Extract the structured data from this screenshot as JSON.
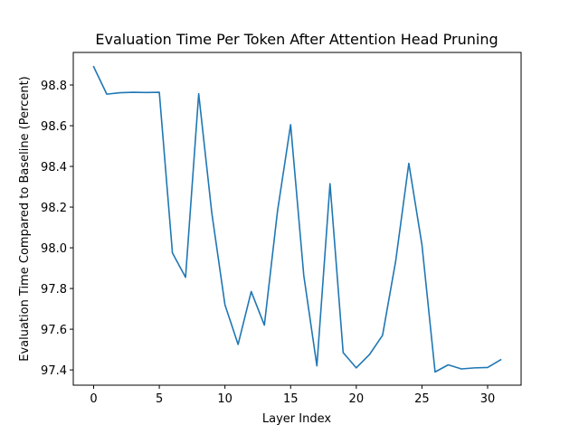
{
  "chart_data": {
    "type": "line",
    "title": "Evaluation Time Per Token After Attention Head Pruning",
    "xlabel": "Layer Index",
    "ylabel": "Evaluation Time Compared to Baseline (Percent)",
    "xlim": [
      -1.55,
      32.55
    ],
    "ylim": [
      97.325,
      98.96
    ],
    "xticks": [
      0,
      5,
      10,
      15,
      20,
      25,
      30
    ],
    "xtick_labels": [
      "0",
      "5",
      "10",
      "15",
      "20",
      "25",
      "30"
    ],
    "yticks": [
      97.4,
      97.6,
      97.8,
      98.0,
      98.2,
      98.4,
      98.6,
      98.8
    ],
    "ytick_labels": [
      "97.4",
      "97.6",
      "97.8",
      "98.0",
      "98.2",
      "98.4",
      "98.6",
      "98.8"
    ],
    "grid": false,
    "line_color": "#1f77b4",
    "series": [
      {
        "x": [
          0,
          1,
          2,
          3,
          4,
          5,
          6,
          7,
          8,
          9,
          10,
          11,
          12,
          13,
          14,
          15,
          16,
          17,
          18,
          19,
          20,
          21,
          22,
          23,
          24,
          25,
          26,
          27,
          28,
          29,
          30,
          31
        ],
        "values": [
          98.89,
          98.755,
          98.762,
          98.764,
          98.763,
          98.764,
          97.975,
          97.855,
          98.757,
          98.17,
          97.72,
          97.525,
          97.785,
          97.62,
          98.18,
          98.605,
          97.865,
          97.42,
          98.315,
          97.485,
          97.41,
          97.475,
          97.57,
          97.935,
          98.415,
          98.015,
          97.39,
          97.425,
          97.405,
          97.41,
          97.412,
          97.45
        ]
      }
    ]
  }
}
